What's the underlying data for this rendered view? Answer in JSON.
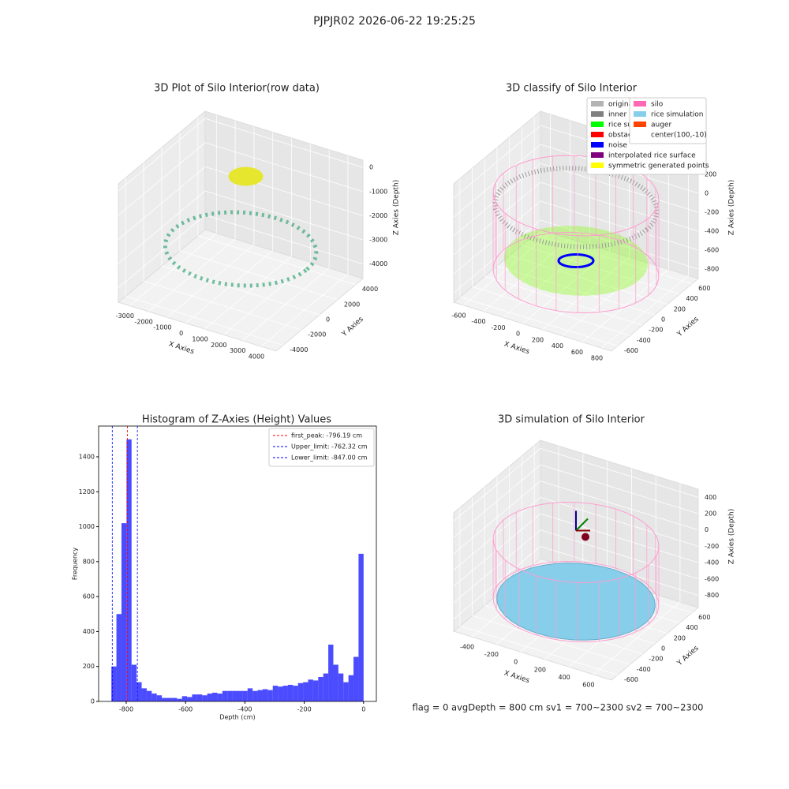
{
  "title": "PJPJR02 2026-06-22 19:25:25",
  "chart_data": [
    {
      "type": "scatter3d",
      "title": "3D Plot of Silo Interior(row data)",
      "xlabel": "X Axies",
      "ylabel": "Y Axies",
      "zlabel": "Z Axies (Depth)",
      "xlim": [
        -3600,
        4800
      ],
      "xticks": [
        -3000,
        -2000,
        -1000,
        0,
        1000,
        2000,
        3000,
        4000
      ],
      "ylim": [
        -4800,
        4800
      ],
      "yticks": [
        -4000,
        -2000,
        0,
        2000,
        4000
      ],
      "zlim": [
        -4600,
        300
      ],
      "zticks": [
        -4000,
        -3000,
        -2000,
        -1000,
        0
      ]
    },
    {
      "type": "scatter3d",
      "title": "3D classify of Silo Interior",
      "xlabel": "X Axies",
      "ylabel": "Y Axies",
      "zlabel": "Z Axies (Depth)",
      "xlim": [
        -700,
        900
      ],
      "xticks": [
        -600,
        -400,
        -200,
        0,
        200,
        400,
        600,
        800
      ],
      "ylim": [
        -700,
        700
      ],
      "yticks": [
        -600,
        -400,
        -200,
        0,
        200,
        400,
        600
      ],
      "zlim": [
        -900,
        350
      ],
      "zticks": [
        -800,
        -600,
        -400,
        -200,
        0,
        200
      ],
      "legend": [
        {
          "name": "original data",
          "color": "#b3b3b3"
        },
        {
          "name": "inner wall",
          "color": "#808080"
        },
        {
          "name": "rice surface",
          "color": "#00ff00"
        },
        {
          "name": "obstacle",
          "color": "#ff0000"
        },
        {
          "name": "noise",
          "color": "#0000ff"
        },
        {
          "name": "interpolated rice surface",
          "color": "#800080"
        },
        {
          "name": "symmetric generated points",
          "color": "#ffff00"
        }
      ]
    },
    {
      "type": "histogram",
      "title": "Histogram of Z-Axies (Height) Values",
      "xlabel": "Depth (cm)",
      "ylabel": "Frequency",
      "color": "#0000ff",
      "bins": [
        -850,
        -833,
        -816,
        -799,
        -782,
        -765,
        -748,
        -731,
        -714,
        -697,
        -680,
        -663,
        -646,
        -629,
        -612,
        -595,
        -578,
        -561,
        -544,
        -527,
        -510,
        -493,
        -476,
        -459,
        -442,
        -425,
        -408,
        -391,
        -374,
        -357,
        -340,
        -323,
        -306,
        -289,
        -272,
        -255,
        -238,
        -221,
        -204,
        -187,
        -170,
        -153,
        -136,
        -119,
        -102,
        -85,
        -68,
        -51,
        -34,
        -17,
        0
      ],
      "values": [
        200,
        500,
        1020,
        1500,
        210,
        110,
        75,
        60,
        45,
        35,
        20,
        20,
        20,
        15,
        30,
        25,
        40,
        40,
        35,
        45,
        50,
        45,
        60,
        60,
        60,
        60,
        60,
        75,
        60,
        65,
        70,
        65,
        90,
        85,
        90,
        95,
        90,
        105,
        110,
        125,
        120,
        140,
        160,
        325,
        210,
        160,
        110,
        150,
        255,
        845
      ],
      "xlim": [
        -893,
        43
      ],
      "xticks": [
        -800,
        -600,
        -400,
        -200,
        0
      ],
      "ylim": [
        0,
        1576
      ],
      "yticks": [
        0,
        200,
        400,
        600,
        800,
        1000,
        1200,
        1400
      ],
      "vlines": [
        {
          "name": "first_peak: -796.19 cm",
          "value": -796.19,
          "color": "#ff0000"
        },
        {
          "name": "Upper_limit: -762.32 cm",
          "value": -762.32,
          "color": "#0000ff"
        },
        {
          "name": "Lower_limit: -847.00 cm",
          "value": -847.0,
          "color": "#0000ff"
        }
      ]
    },
    {
      "type": "scatter3d",
      "title": "3D simulation of Silo Interior",
      "xlabel": "X Axies",
      "ylabel": "Y Axies",
      "zlabel": "Z Axies (Depth)",
      "xlim": [
        -550,
        750
      ],
      "xticks": [
        -400,
        -200,
        0,
        200,
        400,
        600
      ],
      "ylim": [
        -700,
        700
      ],
      "yticks": [
        -600,
        -400,
        -200,
        0,
        200,
        400,
        600
      ],
      "zlim": [
        -950,
        500
      ],
      "zticks": [
        -800,
        -600,
        -400,
        -200,
        0,
        200,
        400
      ],
      "legend": [
        {
          "name": "silo",
          "color": "#ff69b4"
        },
        {
          "name": "rice simulation",
          "color": "#87ceeb"
        },
        {
          "name": "auger",
          "color": "#ff4500"
        },
        {
          "name": "center(100,-10)",
          "color": "none"
        }
      ],
      "annotation": "flag = 0     avgDepth = 800 cm  sv1 = 700~2300  sv2 = 700~2300"
    }
  ]
}
